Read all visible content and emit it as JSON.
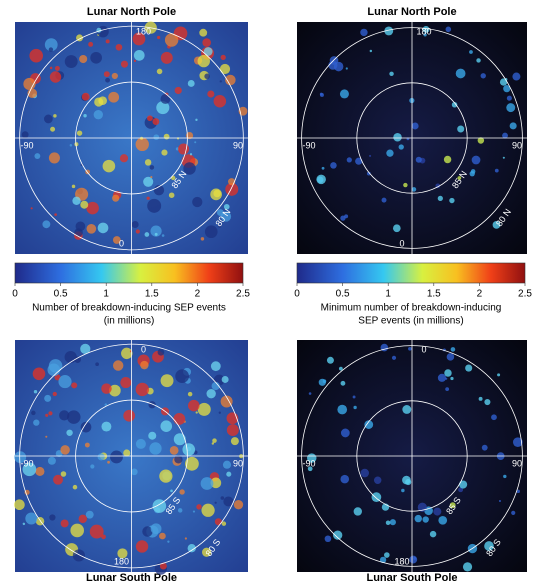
{
  "panels": [
    {
      "title": "Lunar North Pole",
      "labels": {
        "top": "180",
        "right": "90",
        "left": "-90",
        "bottom": "0",
        "inner": "85 N",
        "outer": "80 N"
      }
    },
    {
      "title": "Lunar North Pole",
      "labels": {
        "top": "180",
        "right": "90",
        "left": "-90",
        "bottom": "0",
        "inner": "85 N",
        "outer": "80 N"
      }
    },
    {
      "title": "Lunar South Pole",
      "labels": {
        "top": "0",
        "right": "90",
        "left": "-90",
        "bottom": "180",
        "inner": "85 S",
        "outer": "80 S"
      }
    },
    {
      "title": "Lunar South Pole",
      "labels": {
        "top": "0",
        "right": "90",
        "left": "-90",
        "bottom": "180",
        "inner": "85 S",
        "outer": "80 S"
      }
    }
  ],
  "colorbars": [
    {
      "range": [
        0,
        2.5
      ],
      "ticks": [
        0,
        0.5,
        1,
        1.5,
        2,
        2.5
      ],
      "caption": [
        "Number of breakdown-inducing SEP events",
        "(in millions)"
      ]
    },
    {
      "range": [
        0,
        2.5
      ],
      "ticks": [
        0,
        0.5,
        1,
        1.5,
        2,
        2.5
      ],
      "caption": [
        "Minimum number of breakdown-inducing",
        "SEP events (in millions)"
      ]
    }
  ]
}
